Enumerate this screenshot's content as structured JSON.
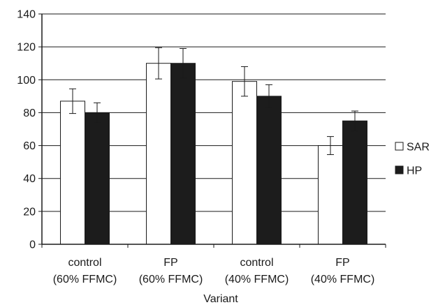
{
  "chart_data": {
    "type": "bar",
    "title": "",
    "xlabel": "Variant",
    "ylabel": "",
    "ylim": [
      0,
      140
    ],
    "yticks": [
      0,
      20,
      40,
      60,
      80,
      100,
      120,
      140
    ],
    "grid": true,
    "legend_position": "right",
    "categories": [
      [
        "control",
        "(60% FFMC)"
      ],
      [
        "FP",
        "(60% FFMC)"
      ],
      [
        "control",
        "(40% FFMC)"
      ],
      [
        "FP",
        "(40% FFMC)"
      ]
    ],
    "series": [
      {
        "name": "SAR",
        "color": "#ffffff",
        "values": [
          87,
          110,
          99,
          60
        ],
        "errors": [
          7.5,
          9.5,
          9.0,
          5.5
        ]
      },
      {
        "name": "HP",
        "color": "#1c1c1c",
        "values": [
          80,
          110,
          90,
          75
        ],
        "errors": [
          6.0,
          9.0,
          7.0,
          6.0
        ]
      }
    ]
  }
}
